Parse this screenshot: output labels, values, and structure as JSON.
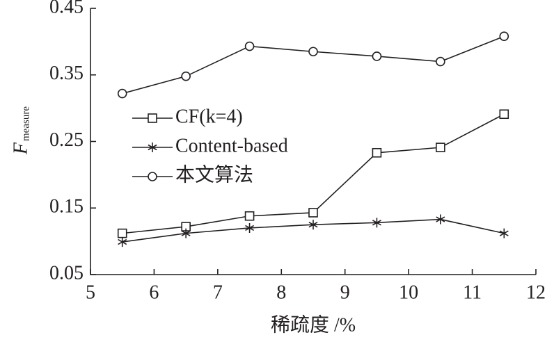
{
  "chart_data": {
    "type": "line",
    "x_label": "稀疏度 /%",
    "y_label": "F",
    "y_label_subscript": "measure",
    "xlim": [
      5,
      12
    ],
    "xticks": [
      5,
      6,
      7,
      8,
      9,
      10,
      11,
      12
    ],
    "ylim": [
      0.05,
      0.45
    ],
    "yticks": [
      0.05,
      0.15,
      0.25,
      0.35,
      0.45
    ],
    "grid": false,
    "legend": "left",
    "x": [
      5.5,
      6.5,
      7.5,
      8.5,
      9.5,
      10.5,
      11.5
    ],
    "series": [
      {
        "name": "CF(k=4)",
        "color": "#231f20",
        "marker": "square",
        "values": [
          0.112,
          0.122,
          0.138,
          0.143,
          0.233,
          0.241,
          0.291
        ]
      },
      {
        "name": "Content-based",
        "color": "#231f20",
        "marker": "star",
        "values": [
          0.099,
          0.112,
          0.12,
          0.125,
          0.128,
          0.133,
          0.112
        ]
      },
      {
        "name": "本文算法",
        "color": "#231f20",
        "marker": "circle",
        "values": [
          0.322,
          0.348,
          0.393,
          0.385,
          0.378,
          0.37,
          0.408
        ]
      }
    ]
  }
}
